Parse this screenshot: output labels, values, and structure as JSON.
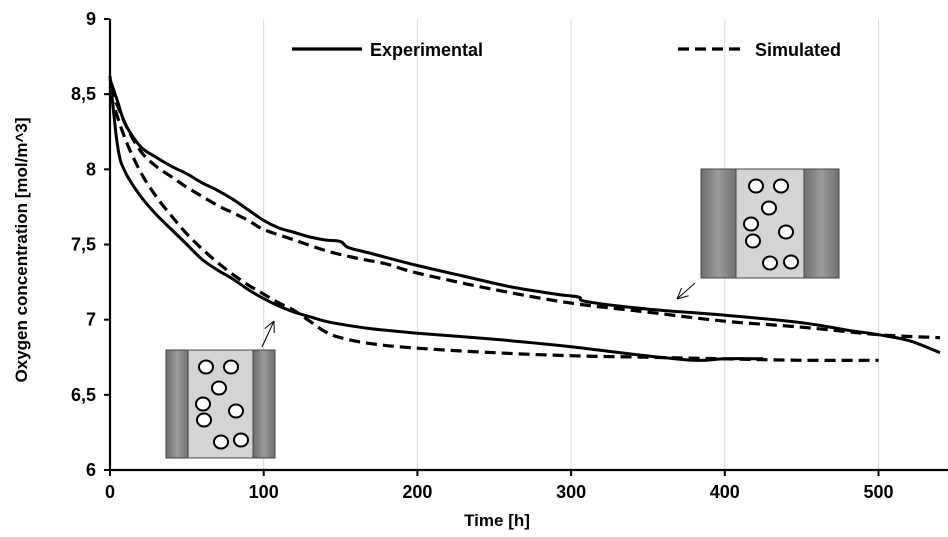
{
  "chart_data": {
    "type": "line",
    "title": "",
    "xlabel": "Time [h]",
    "ylabel": "Oxygen concentration [mol/m^3]",
    "xlim": [
      0,
      540
    ],
    "ylim": [
      6,
      9
    ],
    "x_ticks": [
      0,
      100,
      200,
      300,
      400,
      500
    ],
    "x_tick_labels": [
      "0",
      "100",
      "200",
      "300",
      "400",
      "500"
    ],
    "y_ticks": [
      6,
      6.5,
      7,
      7.5,
      8,
      8.5,
      9
    ],
    "y_tick_labels": [
      "6",
      "6,5",
      "7",
      "7,5",
      "8",
      "8,5",
      "9"
    ],
    "grid": {
      "vertical": true,
      "horizontal": false
    },
    "legend": {
      "position": "top",
      "entries": [
        {
          "label": "Experimental",
          "style": "solid"
        },
        {
          "label": "Simulated",
          "style": "dashed"
        }
      ]
    },
    "series": [
      {
        "name": "Experimental",
        "style": "solid",
        "curve": "upper",
        "points": [
          [
            0,
            8.6
          ],
          [
            5,
            8.45
          ],
          [
            10,
            8.3
          ],
          [
            20,
            8.15
          ],
          [
            30,
            8.08
          ],
          [
            40,
            8.02
          ],
          [
            50,
            7.97
          ],
          [
            60,
            7.91
          ],
          [
            70,
            7.86
          ],
          [
            80,
            7.8
          ],
          [
            90,
            7.73
          ],
          [
            100,
            7.66
          ],
          [
            110,
            7.61
          ],
          [
            120,
            7.58
          ],
          [
            130,
            7.55
          ],
          [
            140,
            7.53
          ],
          [
            150,
            7.52
          ],
          [
            155,
            7.48
          ],
          [
            170,
            7.44
          ],
          [
            200,
            7.36
          ],
          [
            230,
            7.29
          ],
          [
            260,
            7.22
          ],
          [
            290,
            7.17
          ],
          [
            305,
            7.15
          ],
          [
            310,
            7.12
          ],
          [
            350,
            7.07
          ],
          [
            400,
            7.03
          ],
          [
            450,
            6.98
          ],
          [
            480,
            6.93
          ],
          [
            500,
            6.9
          ],
          [
            520,
            6.86
          ],
          [
            540,
            6.78
          ]
        ]
      },
      {
        "name": "Experimental",
        "style": "solid",
        "curve": "lower",
        "points": [
          [
            0,
            8.62
          ],
          [
            5,
            8.15
          ],
          [
            10,
            7.98
          ],
          [
            20,
            7.82
          ],
          [
            30,
            7.7
          ],
          [
            40,
            7.6
          ],
          [
            50,
            7.5
          ],
          [
            60,
            7.4
          ],
          [
            70,
            7.33
          ],
          [
            80,
            7.27
          ],
          [
            90,
            7.2
          ],
          [
            100,
            7.14
          ],
          [
            110,
            7.09
          ],
          [
            120,
            7.05
          ],
          [
            130,
            7.02
          ],
          [
            140,
            6.99
          ],
          [
            150,
            6.97
          ],
          [
            170,
            6.94
          ],
          [
            200,
            6.91
          ],
          [
            250,
            6.87
          ],
          [
            300,
            6.82
          ],
          [
            340,
            6.77
          ],
          [
            380,
            6.73
          ],
          [
            400,
            6.74
          ],
          [
            425,
            6.74
          ]
        ]
      },
      {
        "name": "Simulated",
        "style": "dashed",
        "curve": "upper",
        "points": [
          [
            0,
            8.55
          ],
          [
            10,
            8.3
          ],
          [
            20,
            8.12
          ],
          [
            30,
            8.02
          ],
          [
            40,
            7.95
          ],
          [
            50,
            7.88
          ],
          [
            60,
            7.82
          ],
          [
            70,
            7.76
          ],
          [
            80,
            7.71
          ],
          [
            90,
            7.66
          ],
          [
            100,
            7.6
          ],
          [
            120,
            7.53
          ],
          [
            140,
            7.46
          ],
          [
            160,
            7.41
          ],
          [
            180,
            7.37
          ],
          [
            200,
            7.31
          ],
          [
            250,
            7.2
          ],
          [
            300,
            7.11
          ],
          [
            350,
            7.05
          ],
          [
            400,
            6.99
          ],
          [
            450,
            6.95
          ],
          [
            500,
            6.9
          ],
          [
            540,
            6.88
          ]
        ]
      },
      {
        "name": "Simulated",
        "style": "dashed",
        "curve": "lower",
        "points": [
          [
            0,
            8.5
          ],
          [
            10,
            8.2
          ],
          [
            20,
            7.98
          ],
          [
            30,
            7.82
          ],
          [
            40,
            7.69
          ],
          [
            50,
            7.57
          ],
          [
            60,
            7.47
          ],
          [
            70,
            7.38
          ],
          [
            80,
            7.3
          ],
          [
            90,
            7.23
          ],
          [
            100,
            7.17
          ],
          [
            110,
            7.11
          ],
          [
            120,
            7.06
          ],
          [
            130,
            6.99
          ],
          [
            140,
            6.92
          ],
          [
            150,
            6.88
          ],
          [
            170,
            6.84
          ],
          [
            200,
            6.81
          ],
          [
            250,
            6.78
          ],
          [
            300,
            6.76
          ],
          [
            350,
            6.75
          ],
          [
            400,
            6.74
          ],
          [
            450,
            6.73
          ],
          [
            500,
            6.73
          ]
        ]
      }
    ]
  }
}
